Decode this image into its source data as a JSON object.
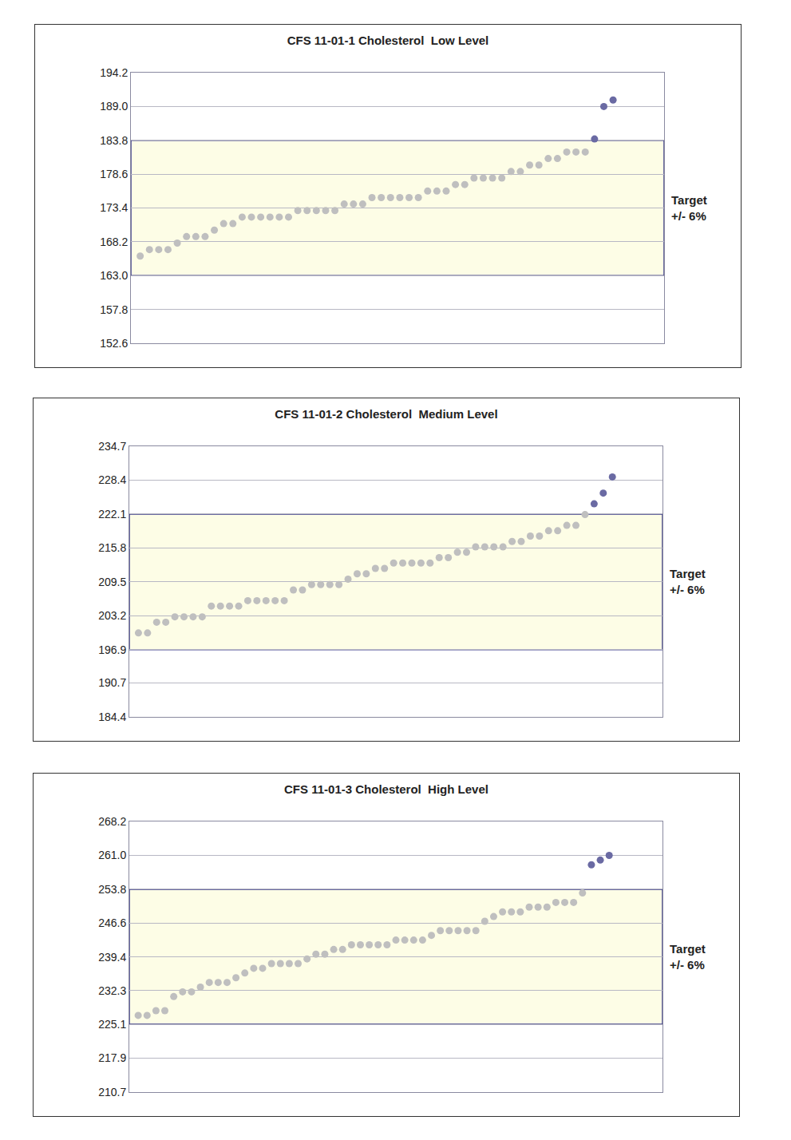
{
  "chart_data": [
    {
      "type": "scatter",
      "title": "CFS 11-01-1 Cholesterol  Low Level",
      "x": [
        1,
        2,
        3,
        4,
        5,
        6,
        7,
        8,
        9,
        10,
        11,
        12,
        13,
        14,
        15,
        16,
        17,
        18,
        19,
        20,
        21,
        22,
        23,
        24,
        25,
        26,
        27,
        28,
        29,
        30,
        31,
        32,
        33,
        34,
        35,
        36,
        37,
        38,
        39,
        40,
        41,
        42,
        43,
        44,
        45,
        46,
        47,
        48,
        49,
        50,
        51,
        52
      ],
      "values": [
        166,
        167,
        167,
        167,
        168,
        169,
        169,
        169,
        170,
        171,
        171,
        172,
        172,
        172,
        172,
        172,
        172,
        173,
        173,
        173,
        173,
        173,
        174,
        174,
        174,
        175,
        175,
        175,
        175,
        175,
        175,
        176,
        176,
        176,
        177,
        177,
        178,
        178,
        178,
        178,
        179,
        179,
        180,
        180,
        181,
        181,
        182,
        182,
        182,
        184,
        189,
        190
      ],
      "colors": [
        "#bfbfbf",
        "#bfbfbf",
        "#bfbfbf",
        "#bfbfbf",
        "#bfbfbf",
        "#bfbfbf",
        "#bfbfbf",
        "#bfbfbf",
        "#bfbfbf",
        "#bfbfbf",
        "#bfbfbf",
        "#bfbfbf",
        "#bfbfbf",
        "#bfbfbf",
        "#bfbfbf",
        "#bfbfbf",
        "#bfbfbf",
        "#bfbfbf",
        "#bfbfbf",
        "#bfbfbf",
        "#bfbfbf",
        "#bfbfbf",
        "#bfbfbf",
        "#bfbfbf",
        "#bfbfbf",
        "#bfbfbf",
        "#bfbfbf",
        "#bfbfbf",
        "#bfbfbf",
        "#bfbfbf",
        "#bfbfbf",
        "#bfbfbf",
        "#bfbfbf",
        "#bfbfbf",
        "#bfbfbf",
        "#bfbfbf",
        "#bfbfbf",
        "#bfbfbf",
        "#bfbfbf",
        "#bfbfbf",
        "#bfbfbf",
        "#bfbfbf",
        "#bfbfbf",
        "#bfbfbf",
        "#bfbfbf",
        "#bfbfbf",
        "#bfbfbf",
        "#bfbfbf",
        "#bfbfbf",
        "#6a6aa3",
        "#6a6aa3",
        "#6a6aa3"
      ],
      "xlim": [
        0,
        57.5
      ],
      "ylim": [
        152.6,
        194.2
      ],
      "yticks": [
        152.6,
        157.8,
        {
          "value": 163.0,
          "label": "163.0"
        },
        168.2,
        173.4,
        178.6,
        183.8,
        {
          "value": 189.0,
          "label": "189.0"
        },
        194.2
      ],
      "target_band": [
        163.0,
        183.8
      ],
      "annotation": [
        "Target",
        "+/- 6%"
      ],
      "grid": true,
      "tick_labels": "y"
    },
    {
      "type": "scatter",
      "title": "CFS 11-01-2 Cholesterol  Medium Level",
      "x": [
        1,
        2,
        3,
        4,
        5,
        6,
        7,
        8,
        9,
        10,
        11,
        12,
        13,
        14,
        15,
        16,
        17,
        18,
        19,
        20,
        21,
        22,
        23,
        24,
        25,
        26,
        27,
        28,
        29,
        30,
        31,
        32,
        33,
        34,
        35,
        36,
        37,
        38,
        39,
        40,
        41,
        42,
        43,
        44,
        45,
        46,
        47,
        48,
        49,
        50,
        51,
        52,
        53
      ],
      "values": [
        200,
        200,
        202,
        202,
        203,
        203,
        203,
        203,
        205,
        205,
        205,
        205,
        206,
        206,
        206,
        206,
        206,
        208,
        208,
        209,
        209,
        209,
        209,
        210,
        211,
        211,
        212,
        212,
        213,
        213,
        213,
        213,
        213,
        214,
        214,
        215,
        215,
        216,
        216,
        216,
        216,
        217,
        217,
        218,
        218,
        219,
        219,
        220,
        220,
        222,
        224,
        226,
        229
      ],
      "colors": [
        "#bfbfbf",
        "#bfbfbf",
        "#bfbfbf",
        "#bfbfbf",
        "#bfbfbf",
        "#bfbfbf",
        "#bfbfbf",
        "#bfbfbf",
        "#bfbfbf",
        "#bfbfbf",
        "#bfbfbf",
        "#bfbfbf",
        "#bfbfbf",
        "#bfbfbf",
        "#bfbfbf",
        "#bfbfbf",
        "#bfbfbf",
        "#bfbfbf",
        "#bfbfbf",
        "#bfbfbf",
        "#bfbfbf",
        "#bfbfbf",
        "#bfbfbf",
        "#bfbfbf",
        "#bfbfbf",
        "#bfbfbf",
        "#bfbfbf",
        "#bfbfbf",
        "#bfbfbf",
        "#bfbfbf",
        "#bfbfbf",
        "#bfbfbf",
        "#bfbfbf",
        "#bfbfbf",
        "#bfbfbf",
        "#bfbfbf",
        "#bfbfbf",
        "#bfbfbf",
        "#bfbfbf",
        "#bfbfbf",
        "#bfbfbf",
        "#bfbfbf",
        "#bfbfbf",
        "#bfbfbf",
        "#bfbfbf",
        "#bfbfbf",
        "#bfbfbf",
        "#bfbfbf",
        "#bfbfbf",
        "#bfbfbf",
        "#6a6aa3",
        "#6a6aa3",
        "#6a6aa3"
      ],
      "xlim": [
        0,
        58.5
      ],
      "ylim": [
        184.4,
        234.7
      ],
      "yticks": [
        184.4,
        190.7,
        196.9,
        203.2,
        209.5,
        215.8,
        222.1,
        228.4,
        234.7
      ],
      "target_band": [
        196.9,
        222.1
      ],
      "annotation": [
        "Target",
        "+/- 6%"
      ],
      "grid": true,
      "tick_labels": "y"
    },
    {
      "type": "scatter",
      "title": "CFS 11-01-3 Cholesterol  High Level",
      "x": [
        1,
        2,
        3,
        4,
        5,
        6,
        7,
        8,
        9,
        10,
        11,
        12,
        13,
        14,
        15,
        16,
        17,
        18,
        19,
        20,
        21,
        22,
        23,
        24,
        25,
        26,
        27,
        28,
        29,
        30,
        31,
        32,
        33,
        34,
        35,
        36,
        37,
        38,
        39,
        40,
        41,
        42,
        43,
        44,
        45,
        46,
        47,
        48,
        49,
        50,
        51,
        52,
        53,
        54
      ],
      "values": [
        227,
        227,
        228,
        228,
        231,
        232,
        232,
        233,
        234,
        234,
        234,
        235,
        236,
        237,
        237,
        238,
        238,
        238,
        238,
        239,
        240,
        240,
        241,
        241,
        242,
        242,
        242,
        242,
        242,
        243,
        243,
        243,
        243,
        244,
        245,
        245,
        245,
        245,
        245,
        247,
        248,
        249,
        249,
        249,
        250,
        250,
        250,
        251,
        251,
        251,
        253,
        259,
        260,
        261
      ],
      "colors": [
        "#bfbfbf",
        "#bfbfbf",
        "#bfbfbf",
        "#bfbfbf",
        "#bfbfbf",
        "#bfbfbf",
        "#bfbfbf",
        "#bfbfbf",
        "#bfbfbf",
        "#bfbfbf",
        "#bfbfbf",
        "#bfbfbf",
        "#bfbfbf",
        "#bfbfbf",
        "#bfbfbf",
        "#bfbfbf",
        "#bfbfbf",
        "#bfbfbf",
        "#bfbfbf",
        "#bfbfbf",
        "#bfbfbf",
        "#bfbfbf",
        "#bfbfbf",
        "#bfbfbf",
        "#bfbfbf",
        "#bfbfbf",
        "#bfbfbf",
        "#bfbfbf",
        "#bfbfbf",
        "#bfbfbf",
        "#bfbfbf",
        "#bfbfbf",
        "#bfbfbf",
        "#bfbfbf",
        "#bfbfbf",
        "#bfbfbf",
        "#bfbfbf",
        "#bfbfbf",
        "#bfbfbf",
        "#bfbfbf",
        "#bfbfbf",
        "#bfbfbf",
        "#bfbfbf",
        "#bfbfbf",
        "#bfbfbf",
        "#bfbfbf",
        "#bfbfbf",
        "#bfbfbf",
        "#bfbfbf",
        "#bfbfbf",
        "#bfbfbf",
        "#6a6aa3",
        "#6a6aa3",
        "#6a6aa3"
      ],
      "xlim": [
        0,
        60
      ],
      "ylim": [
        210.7,
        268.2
      ],
      "yticks": [
        210.7,
        217.9,
        225.1,
        232.3,
        239.4,
        246.6,
        253.8,
        {
          "value": 261.0,
          "label": "261.0"
        },
        268.2
      ],
      "target_band": [
        225.1,
        253.8
      ],
      "annotation": [
        "Target",
        "+/- 6%"
      ],
      "grid": true,
      "tick_labels": "y"
    }
  ]
}
